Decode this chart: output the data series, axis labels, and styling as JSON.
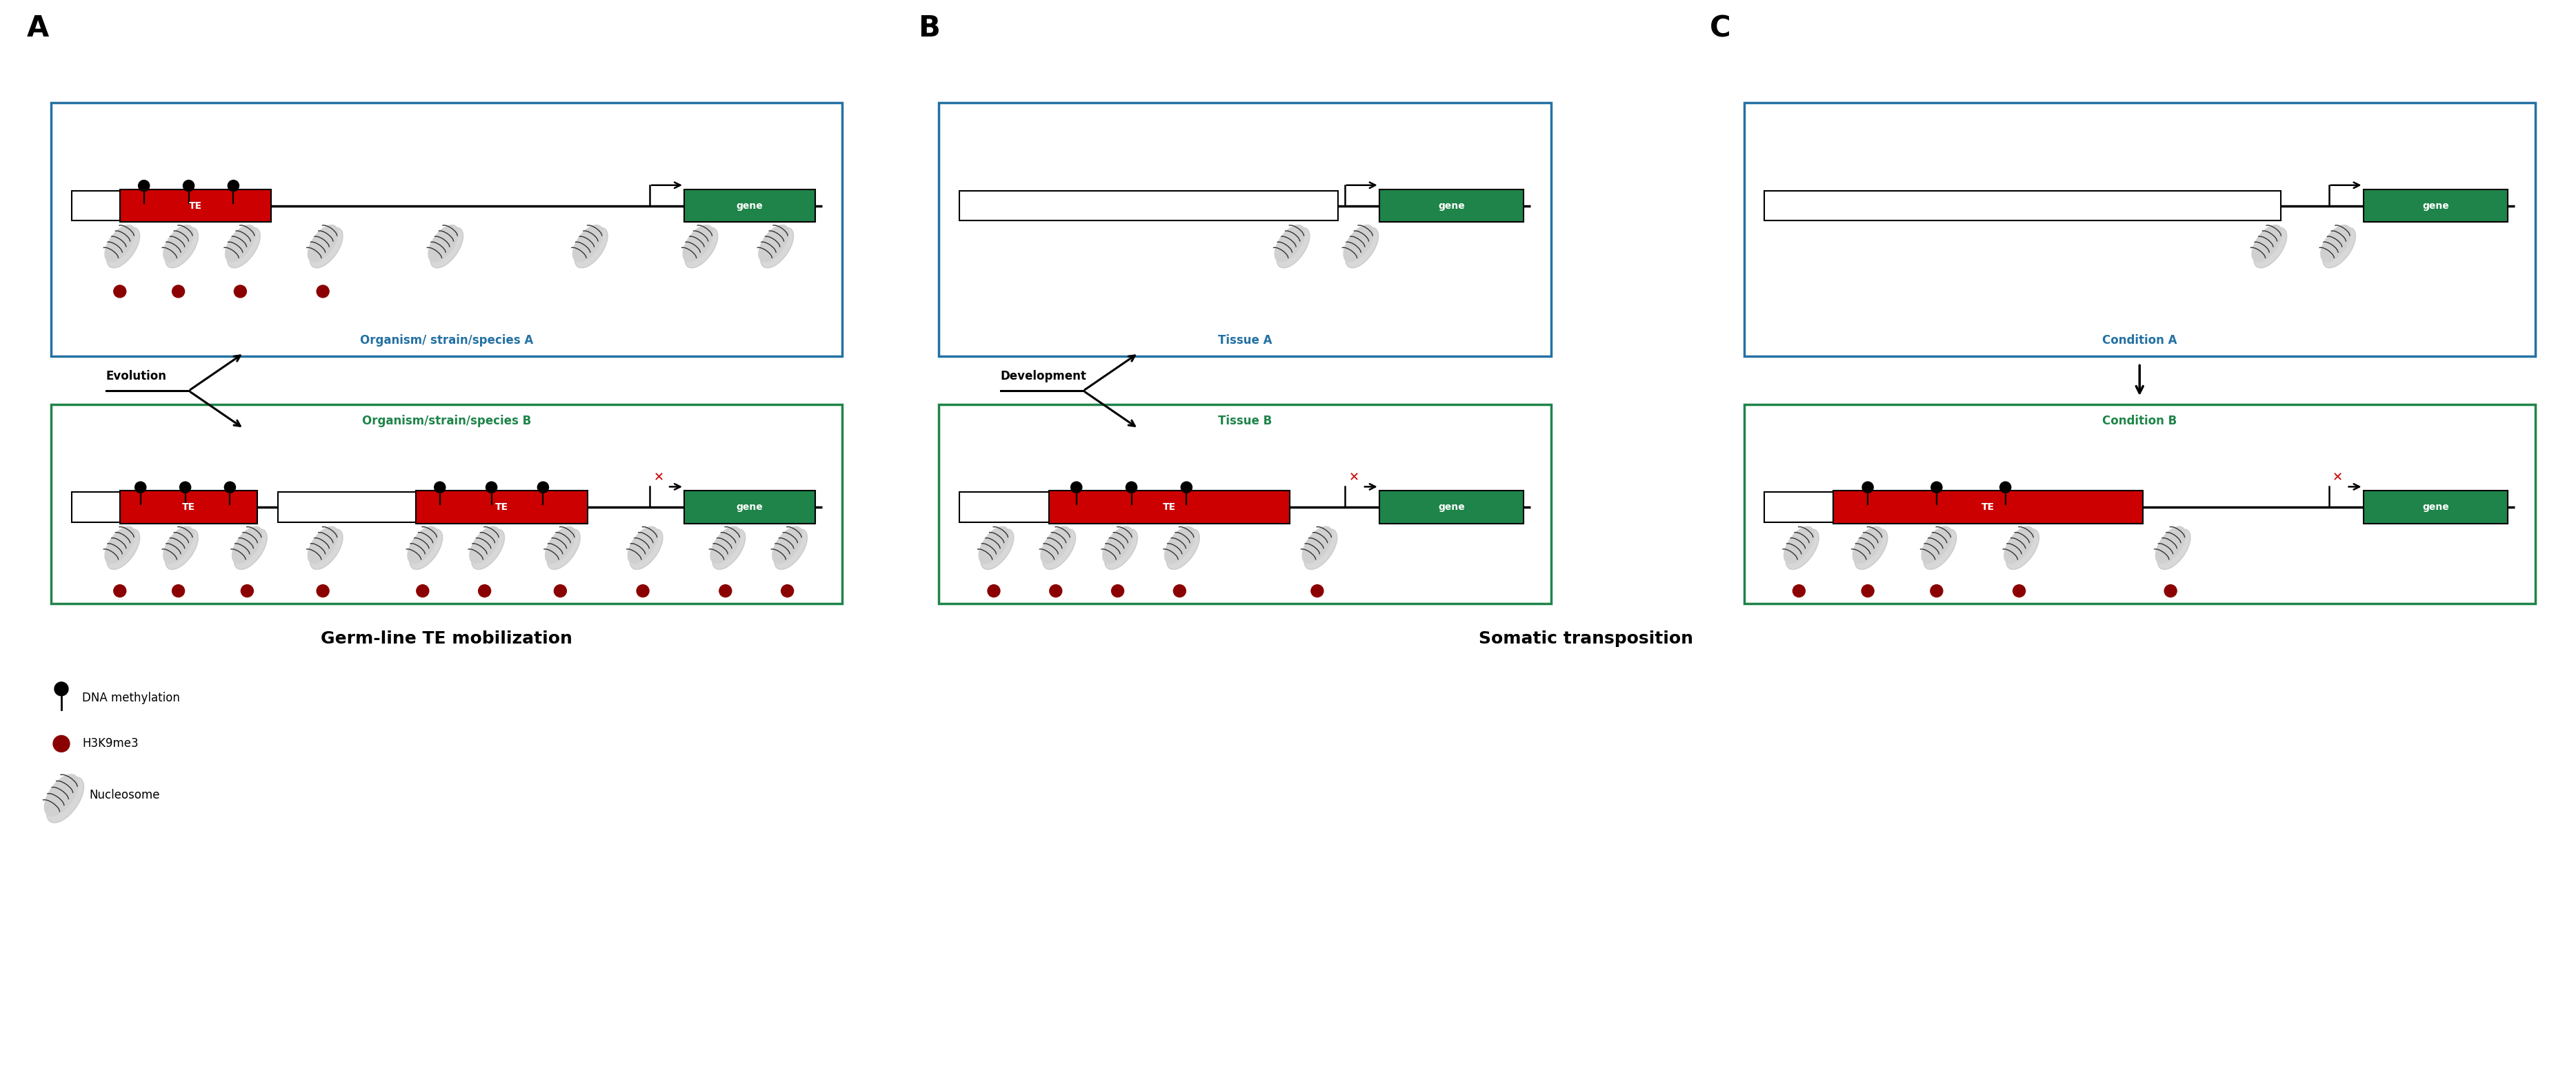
{
  "fig_width": 37.35,
  "fig_height": 15.66,
  "bg_color": "#ffffff",
  "panel_A_label": "A",
  "panel_B_label": "B",
  "panel_C_label": "C",
  "blue_box_color": "#2471a3",
  "green_box_color": "#1e8449",
  "te_color": "#cc0000",
  "gene_color": "#1e8449",
  "gene_text_color": "#ffffff",
  "te_text_color": "#ffffff",
  "dna_line_color": "#000000",
  "red_mark_color": "#cc0000",
  "blue_label_color": "#2471a3",
  "green_label_color": "#1e8449",
  "black_color": "#000000",
  "dark_red_circle": "#8b0000",
  "label_A_text": "Organism/ strain/species A",
  "label_B_text": "Organism/strain/species B",
  "label_tissue_A": "Tissue A",
  "label_tissue_B": "Tissue B",
  "label_condition_A": "Condition A",
  "label_condition_B": "Condition B",
  "evolution_text": "Evolution",
  "development_text": "Development",
  "bottom_title_A": "Germ-line TE mobilization",
  "bottom_title_B": "Somatic transposition",
  "legend_methylation": "DNA methylation",
  "legend_h3k9me3": "H3K9me3",
  "legend_nucleosome": "Nucleosome"
}
